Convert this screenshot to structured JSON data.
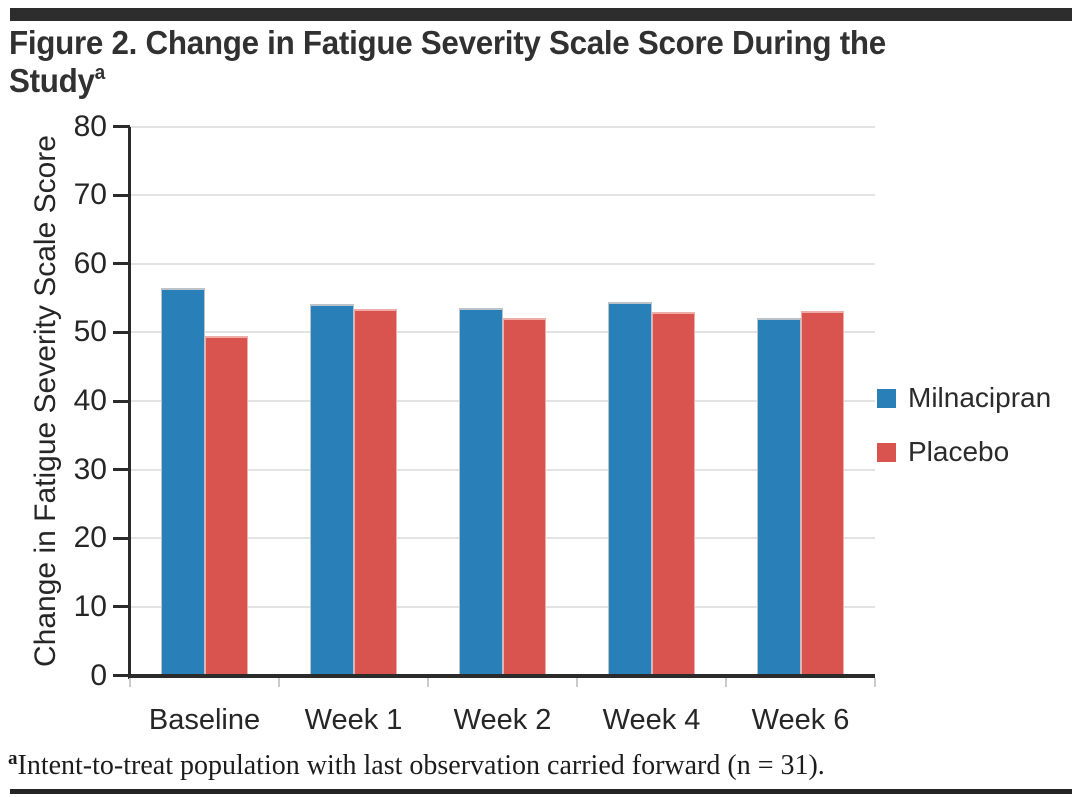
{
  "figure": {
    "title_line1": "Figure 2. Change in Fatigue Severity Scale Score During the",
    "title_line2_base": "Study",
    "title_superscript": "a",
    "footnote_superscript": "a",
    "footnote_text": "Intent-to-treat population with last observation carried forward (n = 31)."
  },
  "chart_data": {
    "type": "bar",
    "title": "Figure 2. Change in Fatigue Severity Scale Score During the Study",
    "categories": [
      "Baseline",
      "Week 1",
      "Week 2",
      "Week 4",
      "Week 6"
    ],
    "series": [
      {
        "name": "Milnacipran",
        "color": "#2980b9",
        "edge_color": "#bcc2ca",
        "values": [
          56.5,
          54.1,
          53.6,
          54.4,
          52.1
        ]
      },
      {
        "name": "Placebo",
        "color": "#d9534f",
        "edge_color": "#eeada9",
        "values": [
          49.4,
          53.4,
          52.1,
          52.9,
          53.1
        ]
      }
    ],
    "xlabel": "",
    "ylabel": "Change in Fatigue Severity Scale Score",
    "ylim": [
      0,
      80
    ],
    "yticks": [
      0,
      10,
      20,
      30,
      40,
      50,
      60,
      70,
      80
    ],
    "grid": "horizontal-only",
    "legend_position": "right-center",
    "axis_color": "#2b2b2b",
    "gridline_color": "#e3e3e3"
  }
}
